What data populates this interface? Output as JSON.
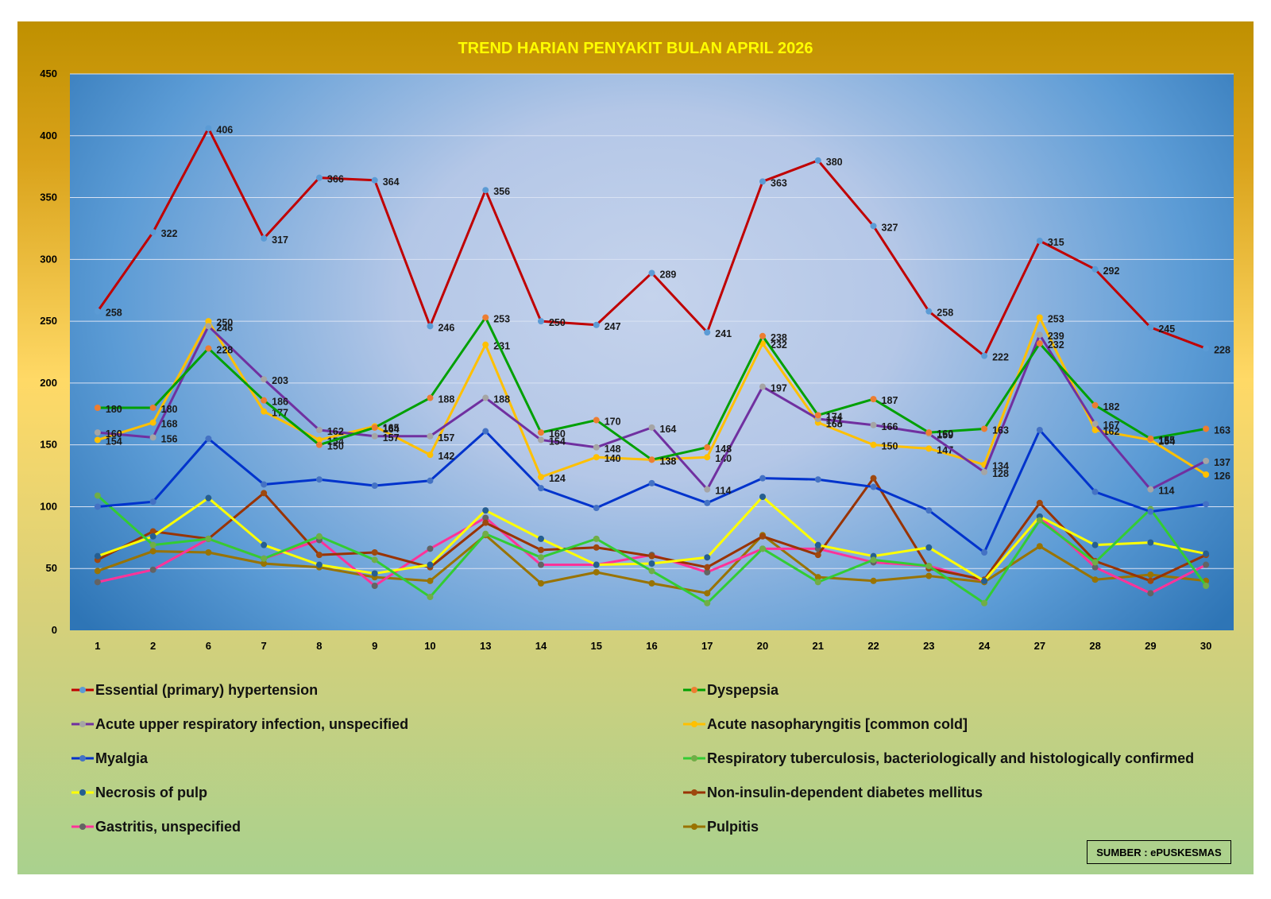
{
  "chart_data": {
    "type": "line",
    "title": "TREND HARIAN PENYAKIT BULAN APRIL 2026",
    "xlabel": "",
    "ylabel": "",
    "ylim": [
      0,
      450
    ],
    "yticks": [
      0,
      50,
      100,
      150,
      200,
      250,
      300,
      350,
      400,
      450
    ],
    "grid": true,
    "legend_position": "bottom",
    "categories": [
      "1",
      "2",
      "6",
      "7",
      "8",
      "9",
      "10",
      "13",
      "14",
      "15",
      "16",
      "17",
      "20",
      "21",
      "22",
      "23",
      "24",
      "27",
      "28",
      "29",
      "30"
    ],
    "series": [
      {
        "name": "Essential (primary) hypertension",
        "color": "#c00000",
        "marker": "#5b9bd5",
        "labels": true,
        "values": [
          258,
          322,
          406,
          317,
          366,
          364,
          246,
          356,
          250,
          247,
          289,
          241,
          363,
          380,
          327,
          258,
          222,
          315,
          292,
          245,
          228
        ]
      },
      {
        "name": "Dyspepsia",
        "color": "#00a000",
        "marker": "#ed7d31",
        "labels": true,
        "values": [
          180,
          180,
          228,
          186,
          150,
          164,
          188,
          253,
          160,
          170,
          138,
          148,
          238,
          174,
          187,
          160,
          163,
          232,
          182,
          155,
          163
        ]
      },
      {
        "name": "Acute upper respiratory infection, unspecified",
        "color": "#7030a0",
        "marker": "#a5a5a5",
        "labels": true,
        "values": [
          160,
          156,
          246,
          203,
          162,
          157,
          157,
          188,
          154,
          148,
          164,
          114,
          197,
          171,
          166,
          159,
          128,
          239,
          167,
          114,
          137
        ]
      },
      {
        "name": "Acute nasopharyngitis [common cold]",
        "color": "#ffc000",
        "marker": "#ffc000",
        "labels": true,
        "values": [
          154,
          168,
          250,
          177,
          154,
          165,
          142,
          231,
          124,
          140,
          138,
          140,
          232,
          168,
          150,
          147,
          134,
          253,
          162,
          154,
          126
        ]
      },
      {
        "name": "Myalgia",
        "color": "#0033cc",
        "marker": "#4472c4",
        "labels": false,
        "values": [
          100,
          104,
          155,
          118,
          122,
          117,
          121,
          161,
          115,
          99,
          119,
          103,
          123,
          122,
          116,
          97,
          63,
          162,
          112,
          96,
          102
        ]
      },
      {
        "name": "Respiratory tuberculosis, bacteriologically and histologically confirmed",
        "color": "#33cc33",
        "marker": "#70ad47",
        "labels": false,
        "values": [
          109,
          69,
          74,
          58,
          76,
          57,
          27,
          78,
          59,
          74,
          48,
          22,
          66,
          39,
          57,
          52,
          22,
          89,
          55,
          98,
          36
        ]
      },
      {
        "name": "Necrosis of pulp",
        "color": "#ffff00",
        "marker": "#255e91",
        "labels": false,
        "values": [
          60,
          76,
          107,
          69,
          53,
          46,
          53,
          97,
          74,
          53,
          54,
          59,
          108,
          69,
          60,
          67,
          40,
          92,
          69,
          71,
          62
        ]
      },
      {
        "name": "Non-insulin-dependent diabetes mellitus",
        "color": "#993300",
        "marker": "#9e480e",
        "labels": false,
        "values": [
          57,
          80,
          74,
          111,
          61,
          63,
          51,
          87,
          65,
          67,
          60,
          51,
          76,
          61,
          123,
          50,
          41,
          103,
          56,
          40,
          61
        ]
      },
      {
        "name": "Gastritis, unspecified",
        "color": "#ff3399",
        "marker": "#636363",
        "labels": false,
        "values": [
          39,
          49,
          74,
          58,
          73,
          36,
          66,
          91,
          53,
          53,
          61,
          47,
          66,
          66,
          55,
          52,
          40,
          92,
          51,
          30,
          53
        ]
      },
      {
        "name": "Pulpitis",
        "color": "#997300",
        "marker": "#997300",
        "labels": false,
        "values": [
          48,
          64,
          63,
          54,
          51,
          43,
          40,
          77,
          38,
          47,
          38,
          30,
          77,
          43,
          40,
          44,
          39,
          68,
          41,
          45,
          40
        ]
      }
    ]
  },
  "source_label": "SUMBER : ePUSKESMAS"
}
